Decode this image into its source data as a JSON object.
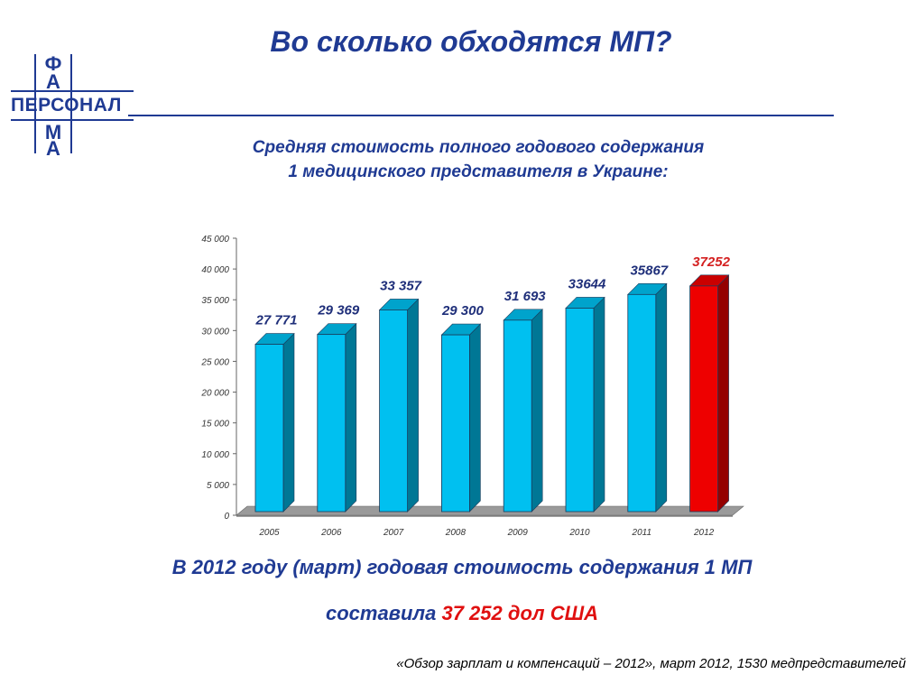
{
  "slide": {
    "title": "Во сколько обходятся МП?",
    "subtitle_line1": "Средняя стоимость полного годового содержания",
    "subtitle_line2": "1 медицинского представителя в Украине:",
    "conclusion_line1": "В 2012 году (март) годовая стоимость содержания 1 МП",
    "conclusion_line2_prefix": "составила",
    "conclusion_highlight_value": "37 252",
    "conclusion_highlight_unit": "дол США",
    "source": "«Обзор зарплат и компенсаций – 2012», март 2012, 1530 медпредставителей"
  },
  "logo": {
    "vertical_letters": [
      "Ф",
      "А",
      "М",
      "А"
    ],
    "horizontal_word": "ПЕРСОНАЛ"
  },
  "colors": {
    "accent": "#1f3a93",
    "bar_cyan": "#00c0f0",
    "bar_red": "#ee0000",
    "highlight": "#e01010"
  },
  "chart_data": {
    "type": "bar",
    "categories": [
      "2005",
      "2006",
      "2007",
      "2008",
      "2009",
      "2010",
      "2011",
      "2012"
    ],
    "values": [
      27771,
      29369,
      33357,
      29300,
      31693,
      33644,
      35867,
      37252
    ],
    "data_labels": [
      "27 771",
      "29 369",
      "33 357",
      "29 300",
      "31 693",
      "33644",
      "35867",
      "37252"
    ],
    "highlight_index": 7,
    "y_ticks": [
      0,
      5000,
      10000,
      15000,
      20000,
      25000,
      30000,
      35000,
      40000,
      45000
    ],
    "y_tick_labels": [
      "0",
      "5 000",
      "10 000",
      "15 000",
      "20 000",
      "25 000",
      "30 000",
      "35 000",
      "40 000",
      "45 000"
    ],
    "ylim": [
      0,
      45000
    ],
    "grid": false,
    "legend": "none",
    "style": "3d-columns"
  }
}
